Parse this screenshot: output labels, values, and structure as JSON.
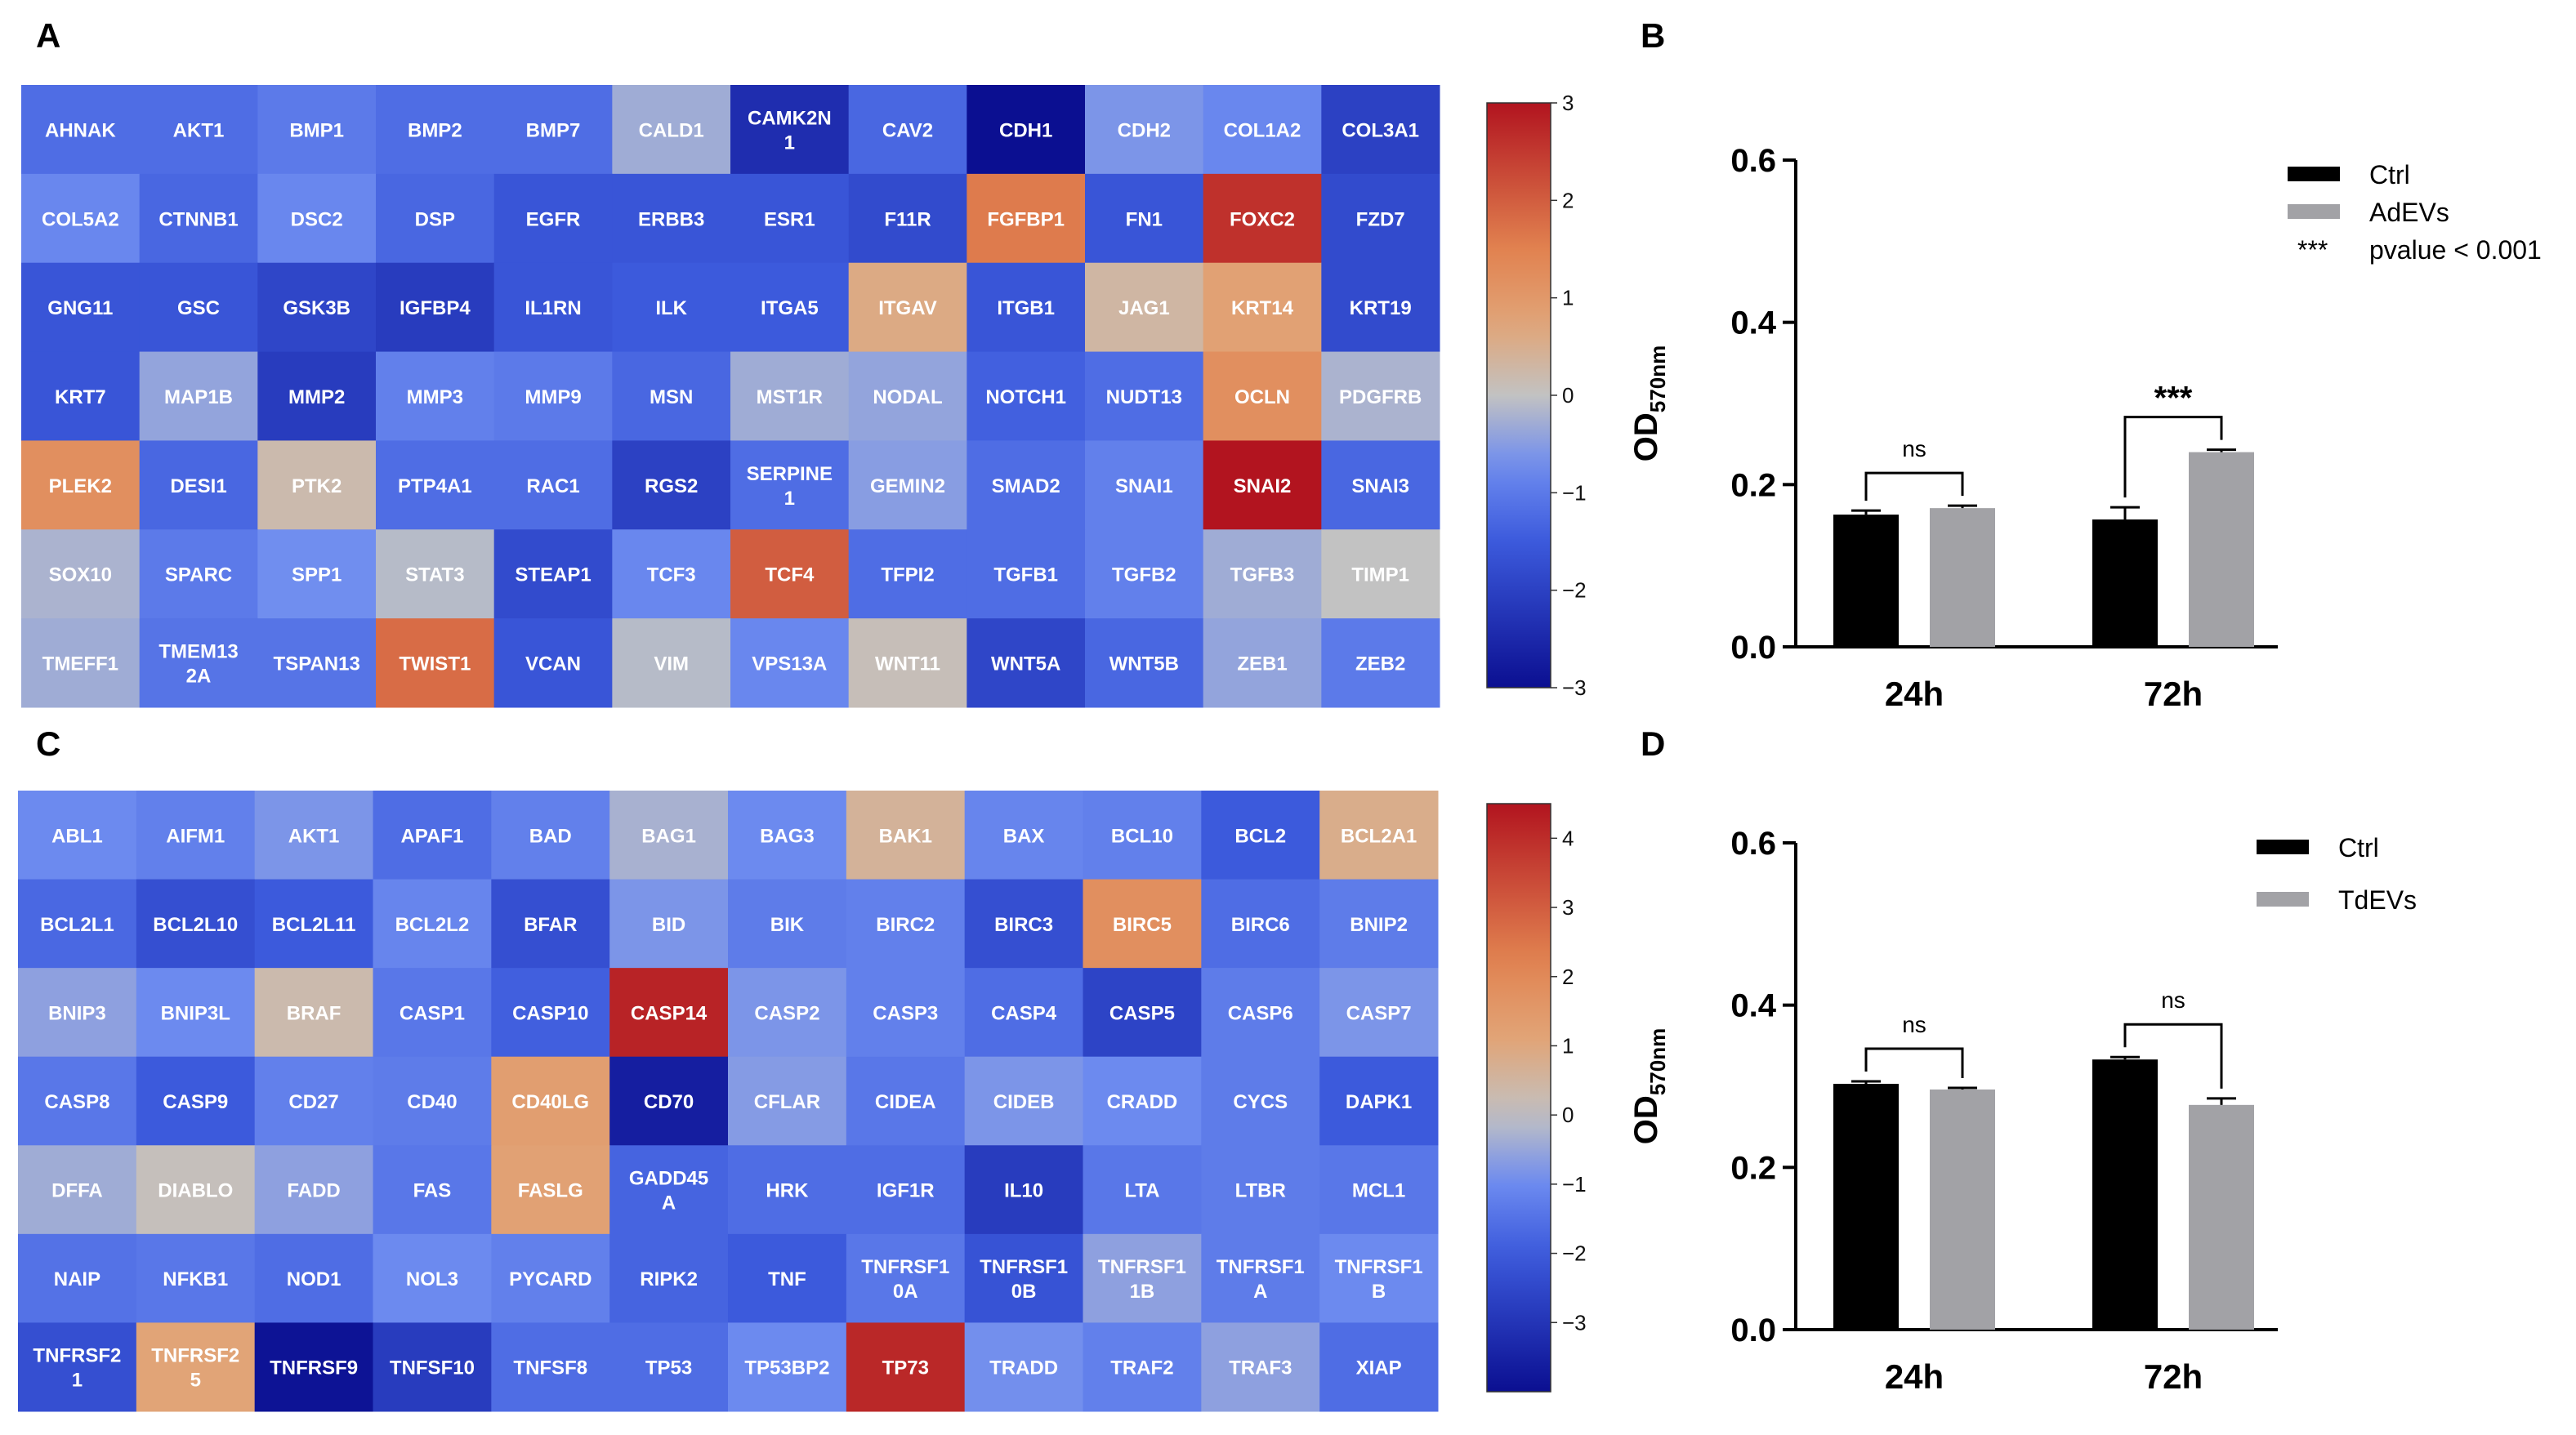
{
  "panels": {
    "a": "A",
    "b": "B",
    "c": "C",
    "d": "D"
  },
  "chart_data": [
    {
      "panel": "A",
      "type": "heatmap",
      "rows": 7,
      "cols": 12,
      "colorbar": {
        "min": -3,
        "max": 3,
        "ticks": [
          "3",
          "2",
          "1",
          "0",
          "−1",
          "−2",
          "−3"
        ]
      },
      "cells": [
        [
          [
            "AHNAK",
            -1.2
          ],
          [
            "AKT1",
            -1.2
          ],
          [
            "BMP1",
            -1.0
          ],
          [
            "BMP2",
            -1.2
          ],
          [
            "BMP7",
            -1.2
          ],
          [
            "CALD1",
            -0.3
          ],
          [
            "CAMK2N\n1",
            -2.4
          ],
          [
            "CAV2",
            -1.3
          ],
          [
            "CDH1",
            -3.2
          ],
          [
            "CDH2",
            -0.6
          ],
          [
            "COL1A2",
            -0.8
          ],
          [
            "COL3A1",
            -2.0
          ]
        ],
        [
          [
            "COL5A2",
            -0.8
          ],
          [
            "CTNNB1",
            -1.3
          ],
          [
            "DSC2",
            -0.8
          ],
          [
            "DSP",
            -1.3
          ],
          [
            "EGFR",
            -1.6
          ],
          [
            "ERBB3",
            -1.6
          ],
          [
            "ESR1",
            -1.6
          ],
          [
            "F11R",
            -1.8
          ],
          [
            "FGFBP1",
            1.6
          ],
          [
            "FN1",
            -1.6
          ],
          [
            "FOXC2",
            2.6
          ],
          [
            "FZD7",
            -1.8
          ]
        ],
        [
          [
            "GNG11",
            -1.6
          ],
          [
            "GSC",
            -1.6
          ],
          [
            "GSK3B",
            -1.9
          ],
          [
            "IGFBP4",
            -2.1
          ],
          [
            "IL1RN",
            -1.6
          ],
          [
            "ILK",
            -1.5
          ],
          [
            "ITGA5",
            -1.5
          ],
          [
            "ITGAV",
            0.6
          ],
          [
            "ITGB1",
            -1.6
          ],
          [
            "JAG1",
            0.3
          ],
          [
            "KRT14",
            0.8
          ],
          [
            "KRT19",
            -1.8
          ]
        ],
        [
          [
            "KRT7",
            -1.6
          ],
          [
            "MAP1B",
            -0.4
          ],
          [
            "MMP2",
            -2.1
          ],
          [
            "MMP3",
            -0.9
          ],
          [
            "MMP9",
            -1.0
          ],
          [
            "MSN",
            -1.3
          ],
          [
            "MST1R",
            -0.3
          ],
          [
            "NODAL",
            -0.4
          ],
          [
            "NOTCH1",
            -1.4
          ],
          [
            "NUDT13",
            -1.2
          ],
          [
            "OCLN",
            1.2
          ],
          [
            "PDGFRB",
            -0.2
          ]
        ],
        [
          [
            "PLEK2",
            1.2
          ],
          [
            "DESI1",
            -1.3
          ],
          [
            "PTK2",
            0.2
          ],
          [
            "PTP4A1",
            -1.2
          ],
          [
            "RAC1",
            -1.2
          ],
          [
            "RGS2",
            -2.0
          ],
          [
            "SERPINE\n1",
            -1.2
          ],
          [
            "GEMIN2",
            -0.5
          ],
          [
            "SMAD2",
            -1.2
          ],
          [
            "SNAI1",
            -0.9
          ],
          [
            "SNAI2",
            3.0
          ],
          [
            "SNAI3",
            -1.3
          ]
        ],
        [
          [
            "SOX10",
            -0.2
          ],
          [
            "SPARC",
            -1.0
          ],
          [
            "SPP1",
            -0.7
          ],
          [
            "STAT3",
            -0.1
          ],
          [
            "STEAP1",
            -1.8
          ],
          [
            "TCF3",
            -0.8
          ],
          [
            "TCF4",
            2.0
          ],
          [
            "TFPI2",
            -1.2
          ],
          [
            "TGFB1",
            -1.2
          ],
          [
            "TGFB2",
            -0.9
          ],
          [
            "TGFB3",
            -0.3
          ],
          [
            "TIMP1",
            0.0
          ]
        ],
        [
          [
            "TMEFF1",
            -0.3
          ],
          [
            "TMEM13\n2A",
            -1.1
          ],
          [
            "TSPAN13",
            -1.1
          ],
          [
            "TWIST1",
            1.8
          ],
          [
            "VCAN",
            -1.6
          ],
          [
            "VIM",
            -0.1
          ],
          [
            "VPS13A",
            -0.8
          ],
          [
            "WNT11",
            0.1
          ],
          [
            "WNT5A",
            -1.9
          ],
          [
            "WNT5B",
            -1.3
          ],
          [
            "ZEB1",
            -0.4
          ],
          [
            "ZEB2",
            -1.0
          ]
        ]
      ]
    },
    {
      "panel": "B",
      "type": "bar",
      "categories": [
        "24h",
        "72h"
      ],
      "series": [
        {
          "name": "Ctrl",
          "values": [
            0.163,
            0.157
          ],
          "errors": [
            0.005,
            0.015
          ]
        },
        {
          "name": "AdEVs",
          "values": [
            0.171,
            0.24
          ],
          "errors": [
            0.003,
            0.003
          ]
        }
      ],
      "ylabel": "OD",
      "ylabel_sub": "570nm",
      "ylim": [
        0,
        0.6
      ],
      "yticks": [
        "0.0",
        "0.2",
        "0.4",
        "0.6"
      ],
      "significance": [
        "ns",
        "***"
      ],
      "legend_note": {
        "marker": "***",
        "text": "pvalue < 0.001"
      }
    },
    {
      "panel": "C",
      "type": "heatmap",
      "rows": 7,
      "cols": 12,
      "colorbar": {
        "min": -4,
        "max": 4.5,
        "ticks": [
          "4",
          "3",
          "2",
          "1",
          "0",
          "−1",
          "−2",
          "−3"
        ]
      },
      "cells": [
        [
          [
            "ABL1",
            -1.0
          ],
          [
            "AIFM1",
            -1.2
          ],
          [
            "AKT1",
            -0.8
          ],
          [
            "APAF1",
            -1.6
          ],
          [
            "BAD",
            -1.2
          ],
          [
            "BAG1",
            -0.3
          ],
          [
            "BAG3",
            -1.0
          ],
          [
            "BAK1",
            0.6
          ],
          [
            "BAX",
            -1.1
          ],
          [
            "BCL10",
            -1.2
          ],
          [
            "BCL2",
            -2.0
          ],
          [
            "BCL2A1",
            0.8
          ]
        ],
        [
          [
            "BCL2L1",
            -1.7
          ],
          [
            "BCL2L10",
            -2.3
          ],
          [
            "BCL2L11",
            -2.0
          ],
          [
            "BCL2L2",
            -1.1
          ],
          [
            "BFAR",
            -2.3
          ],
          [
            "BID",
            -0.8
          ],
          [
            "BIK",
            -1.3
          ],
          [
            "BIRC2",
            -1.2
          ],
          [
            "BIRC3",
            -2.3
          ],
          [
            "BIRC5",
            1.8
          ],
          [
            "BIRC6",
            -1.6
          ],
          [
            "BNIP2",
            -1.3
          ]
        ],
        [
          [
            "BNIP3",
            -0.6
          ],
          [
            "BNIP3L",
            -1.0
          ],
          [
            "BRAF",
            0.3
          ],
          [
            "CASP1",
            -1.4
          ],
          [
            "CASP10",
            -1.9
          ],
          [
            "CASP14",
            4.2
          ],
          [
            "CASP2",
            -0.8
          ],
          [
            "CASP3",
            -1.2
          ],
          [
            "CASP4",
            -1.6
          ],
          [
            "CASP5",
            -2.6
          ],
          [
            "CASP6",
            -1.3
          ],
          [
            "CASP7",
            -0.8
          ]
        ],
        [
          [
            "CASP8",
            -1.4
          ],
          [
            "CASP9",
            -2.0
          ],
          [
            "CD27",
            -1.2
          ],
          [
            "CD40",
            -1.3
          ],
          [
            "CD40LG",
            1.3
          ],
          [
            "CD70",
            -3.6
          ],
          [
            "CFLAR",
            -0.7
          ],
          [
            "CIDEA",
            -1.4
          ],
          [
            "CIDEB",
            -0.8
          ],
          [
            "CRADD",
            -1.0
          ],
          [
            "CYCS",
            -1.3
          ],
          [
            "DAPK1",
            -2.0
          ]
        ],
        [
          [
            "DFFA",
            -0.4
          ],
          [
            "DIABLO",
            0.1
          ],
          [
            "FADD",
            -0.6
          ],
          [
            "FAS",
            -1.4
          ],
          [
            "FASLG",
            1.2
          ],
          [
            "GADD45\nA",
            -1.8
          ],
          [
            "HRK",
            -1.6
          ],
          [
            "IGF1R",
            -1.6
          ],
          [
            "IL10",
            -2.8
          ],
          [
            "LTA",
            -1.4
          ],
          [
            "LTBR",
            -1.3
          ],
          [
            "MCL1",
            -1.4
          ]
        ],
        [
          [
            "NAIP",
            -1.5
          ],
          [
            "NFKB1",
            -1.4
          ],
          [
            "NOD1",
            -1.6
          ],
          [
            "NOL3",
            -1.0
          ],
          [
            "PYCARD",
            -1.2
          ],
          [
            "RIPK2",
            -1.8
          ],
          [
            "TNF",
            -2.0
          ],
          [
            "TNFRSF1\n0A",
            -1.4
          ],
          [
            "TNFRSF1\n0B",
            -2.2
          ],
          [
            "TNFRSF1\n1B",
            -0.6
          ],
          [
            "TNFRSF1\nA",
            -1.3
          ],
          [
            "TNFRSF1\nB",
            -1.0
          ]
        ],
        [
          [
            "TNFRSF2\n1",
            -2.3
          ],
          [
            "TNFRSF2\n5",
            1.1
          ],
          [
            "TNFRSF9",
            -3.9
          ],
          [
            "TNFSF10",
            -2.8
          ],
          [
            "TNFSF8",
            -1.6
          ],
          [
            "TP53",
            -1.6
          ],
          [
            "TP53BP2",
            -1.0
          ],
          [
            "TP73",
            4.1
          ],
          [
            "TRADD",
            -0.9
          ],
          [
            "TRAF2",
            -1.2
          ],
          [
            "TRAF3",
            -0.6
          ],
          [
            "XIAP",
            -1.6
          ]
        ]
      ]
    },
    {
      "panel": "D",
      "type": "bar",
      "categories": [
        "24h",
        "72h"
      ],
      "series": [
        {
          "name": "Ctrl",
          "values": [
            0.303,
            0.333
          ],
          "errors": [
            0.003,
            0.003
          ]
        },
        {
          "name": "TdEVs",
          "values": [
            0.296,
            0.277
          ],
          "errors": [
            0.002,
            0.008
          ]
        }
      ],
      "ylabel": "OD",
      "ylabel_sub": "570nm",
      "ylim": [
        0,
        0.6
      ],
      "yticks": [
        "0.0",
        "0.2",
        "0.4",
        "0.6"
      ],
      "significance": [
        "ns",
        "ns"
      ]
    }
  ],
  "colors": {
    "ctrl": "#000000",
    "treated": "#a2a2a6",
    "heat_low": "#0b0f91",
    "heat_mid": "#c2c2c2",
    "heat_high": "#b2141f"
  }
}
